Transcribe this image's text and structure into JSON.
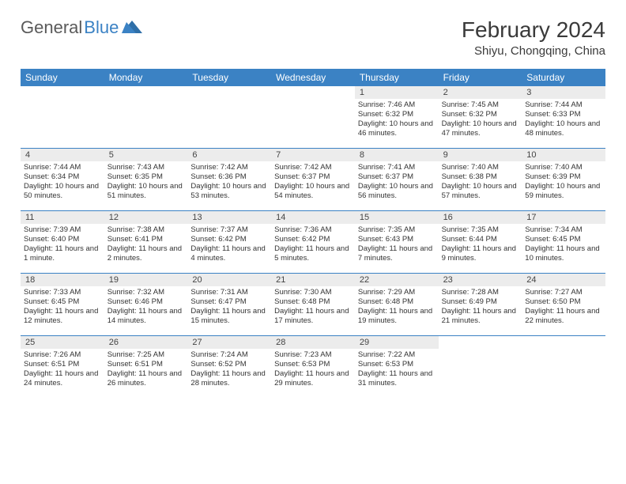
{
  "brand": {
    "word1": "General",
    "word2": "Blue"
  },
  "title": "February 2024",
  "location": "Shiyu, Chongqing, China",
  "colors": {
    "header_bar": "#3b82c4",
    "daynum_bg": "#ececec",
    "rule": "#3b82c4",
    "text": "#333333",
    "brand_gray": "#5a5a5a",
    "brand_blue": "#3b82c4",
    "bg": "#ffffff"
  },
  "typography": {
    "title_fontsize": 28,
    "location_fontsize": 15,
    "dayhead_fontsize": 12,
    "daynum_fontsize": 11,
    "body_fontsize": 9.5
  },
  "layout": {
    "columns": 7,
    "rows": 5,
    "cell_min_height": 78
  },
  "day_headers": [
    "Sunday",
    "Monday",
    "Tuesday",
    "Wednesday",
    "Thursday",
    "Friday",
    "Saturday"
  ],
  "weeks": [
    [
      {
        "n": "",
        "sunrise": "",
        "sunset": "",
        "daylight": ""
      },
      {
        "n": "",
        "sunrise": "",
        "sunset": "",
        "daylight": ""
      },
      {
        "n": "",
        "sunrise": "",
        "sunset": "",
        "daylight": ""
      },
      {
        "n": "",
        "sunrise": "",
        "sunset": "",
        "daylight": ""
      },
      {
        "n": "1",
        "sunrise": "Sunrise: 7:46 AM",
        "sunset": "Sunset: 6:32 PM",
        "daylight": "Daylight: 10 hours and 46 minutes."
      },
      {
        "n": "2",
        "sunrise": "Sunrise: 7:45 AM",
        "sunset": "Sunset: 6:32 PM",
        "daylight": "Daylight: 10 hours and 47 minutes."
      },
      {
        "n": "3",
        "sunrise": "Sunrise: 7:44 AM",
        "sunset": "Sunset: 6:33 PM",
        "daylight": "Daylight: 10 hours and 48 minutes."
      }
    ],
    [
      {
        "n": "4",
        "sunrise": "Sunrise: 7:44 AM",
        "sunset": "Sunset: 6:34 PM",
        "daylight": "Daylight: 10 hours and 50 minutes."
      },
      {
        "n": "5",
        "sunrise": "Sunrise: 7:43 AM",
        "sunset": "Sunset: 6:35 PM",
        "daylight": "Daylight: 10 hours and 51 minutes."
      },
      {
        "n": "6",
        "sunrise": "Sunrise: 7:42 AM",
        "sunset": "Sunset: 6:36 PM",
        "daylight": "Daylight: 10 hours and 53 minutes."
      },
      {
        "n": "7",
        "sunrise": "Sunrise: 7:42 AM",
        "sunset": "Sunset: 6:37 PM",
        "daylight": "Daylight: 10 hours and 54 minutes."
      },
      {
        "n": "8",
        "sunrise": "Sunrise: 7:41 AM",
        "sunset": "Sunset: 6:37 PM",
        "daylight": "Daylight: 10 hours and 56 minutes."
      },
      {
        "n": "9",
        "sunrise": "Sunrise: 7:40 AM",
        "sunset": "Sunset: 6:38 PM",
        "daylight": "Daylight: 10 hours and 57 minutes."
      },
      {
        "n": "10",
        "sunrise": "Sunrise: 7:40 AM",
        "sunset": "Sunset: 6:39 PM",
        "daylight": "Daylight: 10 hours and 59 minutes."
      }
    ],
    [
      {
        "n": "11",
        "sunrise": "Sunrise: 7:39 AM",
        "sunset": "Sunset: 6:40 PM",
        "daylight": "Daylight: 11 hours and 1 minute."
      },
      {
        "n": "12",
        "sunrise": "Sunrise: 7:38 AM",
        "sunset": "Sunset: 6:41 PM",
        "daylight": "Daylight: 11 hours and 2 minutes."
      },
      {
        "n": "13",
        "sunrise": "Sunrise: 7:37 AM",
        "sunset": "Sunset: 6:42 PM",
        "daylight": "Daylight: 11 hours and 4 minutes."
      },
      {
        "n": "14",
        "sunrise": "Sunrise: 7:36 AM",
        "sunset": "Sunset: 6:42 PM",
        "daylight": "Daylight: 11 hours and 5 minutes."
      },
      {
        "n": "15",
        "sunrise": "Sunrise: 7:35 AM",
        "sunset": "Sunset: 6:43 PM",
        "daylight": "Daylight: 11 hours and 7 minutes."
      },
      {
        "n": "16",
        "sunrise": "Sunrise: 7:35 AM",
        "sunset": "Sunset: 6:44 PM",
        "daylight": "Daylight: 11 hours and 9 minutes."
      },
      {
        "n": "17",
        "sunrise": "Sunrise: 7:34 AM",
        "sunset": "Sunset: 6:45 PM",
        "daylight": "Daylight: 11 hours and 10 minutes."
      }
    ],
    [
      {
        "n": "18",
        "sunrise": "Sunrise: 7:33 AM",
        "sunset": "Sunset: 6:45 PM",
        "daylight": "Daylight: 11 hours and 12 minutes."
      },
      {
        "n": "19",
        "sunrise": "Sunrise: 7:32 AM",
        "sunset": "Sunset: 6:46 PM",
        "daylight": "Daylight: 11 hours and 14 minutes."
      },
      {
        "n": "20",
        "sunrise": "Sunrise: 7:31 AM",
        "sunset": "Sunset: 6:47 PM",
        "daylight": "Daylight: 11 hours and 15 minutes."
      },
      {
        "n": "21",
        "sunrise": "Sunrise: 7:30 AM",
        "sunset": "Sunset: 6:48 PM",
        "daylight": "Daylight: 11 hours and 17 minutes."
      },
      {
        "n": "22",
        "sunrise": "Sunrise: 7:29 AM",
        "sunset": "Sunset: 6:48 PM",
        "daylight": "Daylight: 11 hours and 19 minutes."
      },
      {
        "n": "23",
        "sunrise": "Sunrise: 7:28 AM",
        "sunset": "Sunset: 6:49 PM",
        "daylight": "Daylight: 11 hours and 21 minutes."
      },
      {
        "n": "24",
        "sunrise": "Sunrise: 7:27 AM",
        "sunset": "Sunset: 6:50 PM",
        "daylight": "Daylight: 11 hours and 22 minutes."
      }
    ],
    [
      {
        "n": "25",
        "sunrise": "Sunrise: 7:26 AM",
        "sunset": "Sunset: 6:51 PM",
        "daylight": "Daylight: 11 hours and 24 minutes."
      },
      {
        "n": "26",
        "sunrise": "Sunrise: 7:25 AM",
        "sunset": "Sunset: 6:51 PM",
        "daylight": "Daylight: 11 hours and 26 minutes."
      },
      {
        "n": "27",
        "sunrise": "Sunrise: 7:24 AM",
        "sunset": "Sunset: 6:52 PM",
        "daylight": "Daylight: 11 hours and 28 minutes."
      },
      {
        "n": "28",
        "sunrise": "Sunrise: 7:23 AM",
        "sunset": "Sunset: 6:53 PM",
        "daylight": "Daylight: 11 hours and 29 minutes."
      },
      {
        "n": "29",
        "sunrise": "Sunrise: 7:22 AM",
        "sunset": "Sunset: 6:53 PM",
        "daylight": "Daylight: 11 hours and 31 minutes."
      },
      {
        "n": "",
        "sunrise": "",
        "sunset": "",
        "daylight": ""
      },
      {
        "n": "",
        "sunrise": "",
        "sunset": "",
        "daylight": ""
      }
    ]
  ]
}
